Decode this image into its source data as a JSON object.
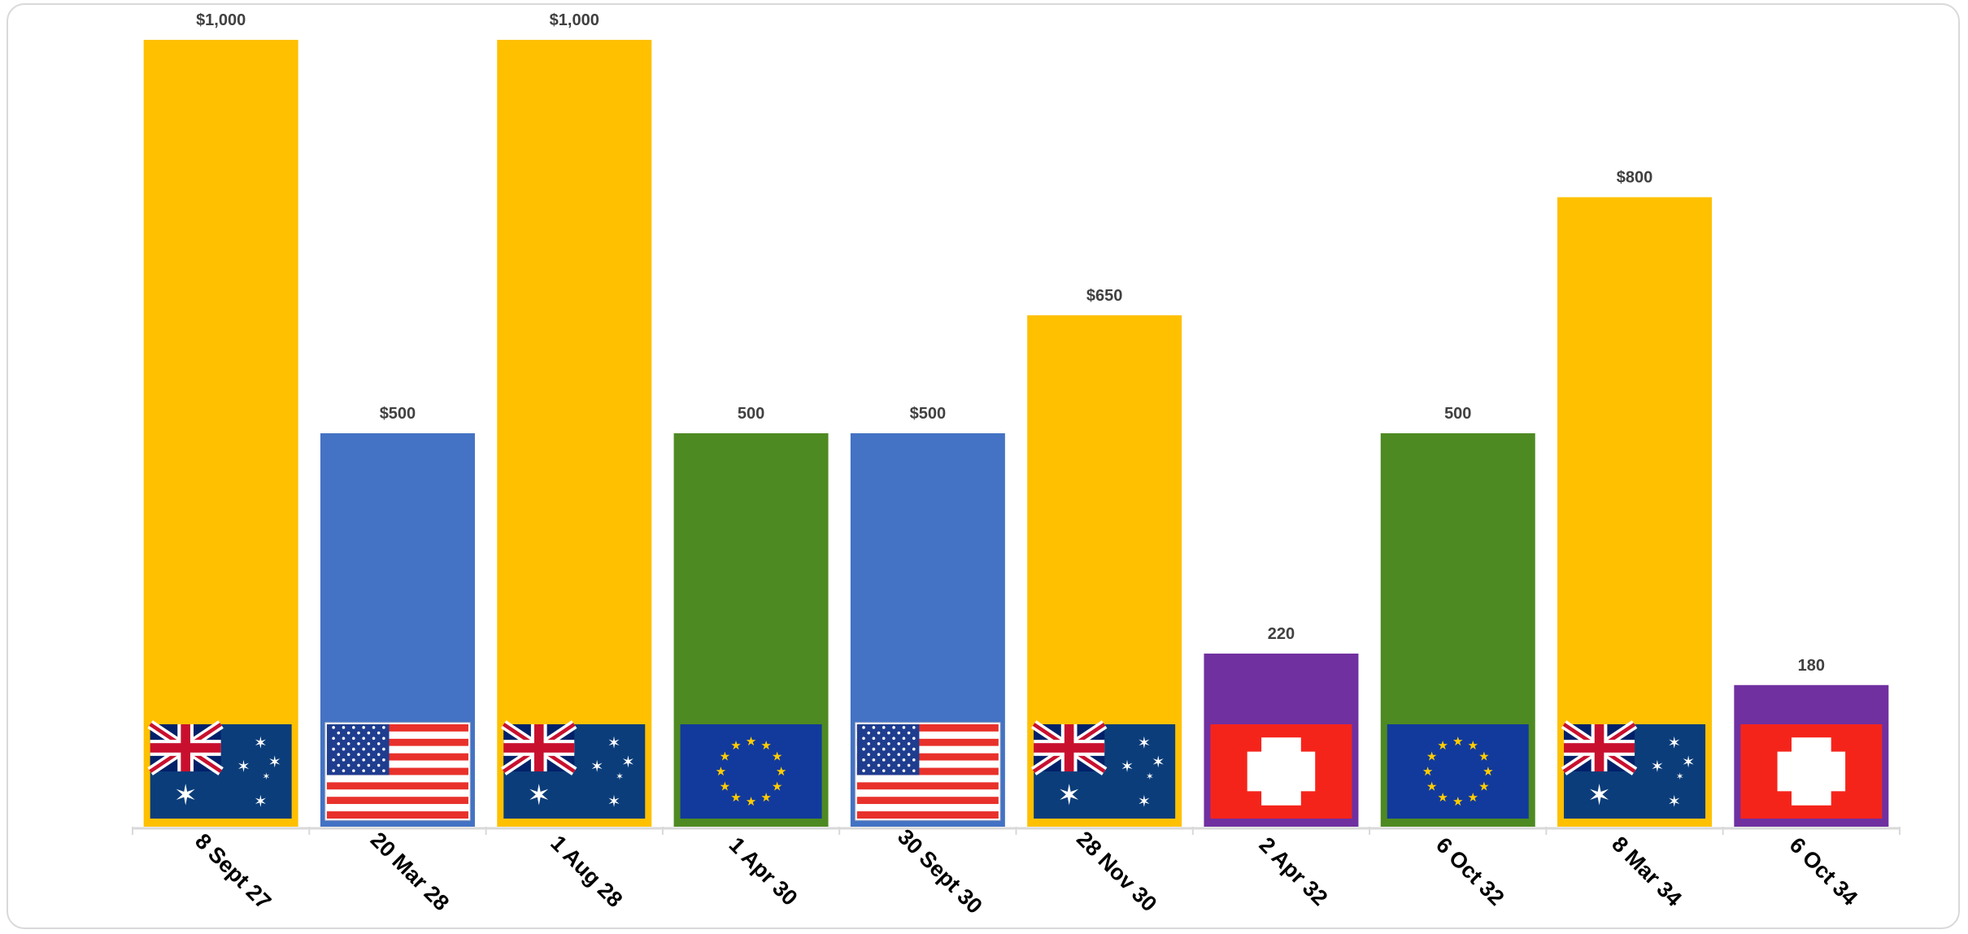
{
  "chart_data": {
    "type": "bar",
    "categories": [
      "8 Sept 27",
      "20 Mar 28",
      "1 Aug 28",
      "1 Apr 30",
      "30 Sept 30",
      "28 Nov 30",
      "2 Apr 32",
      "6 Oct 32",
      "8 Mar 34",
      "6 Oct 34"
    ],
    "values": [
      1000,
      500,
      1000,
      500,
      500,
      650,
      220,
      500,
      800,
      180
    ],
    "data_labels": [
      "$1,000",
      "$500",
      "$1,000",
      "500",
      "$500",
      "$650",
      "220",
      "500",
      "$800",
      "180"
    ],
    "currencies": [
      "AUD",
      "USD",
      "AUD",
      "EUR",
      "USD",
      "AUD",
      "CHF",
      "EUR",
      "AUD",
      "CHF"
    ],
    "flag_icons": [
      "australia-flag-icon",
      "usa-flag-icon",
      "australia-flag-icon",
      "eu-flag-icon",
      "usa-flag-icon",
      "australia-flag-icon",
      "swiss-flag-icon",
      "eu-flag-icon",
      "australia-flag-icon",
      "swiss-flag-icon"
    ],
    "colors": {
      "AUD": "#ffc000",
      "USD": "#4472c4",
      "EUR": "#4e8a22",
      "CHF": "#7030a0"
    },
    "ylim": [
      0,
      1000
    ],
    "grid": false,
    "legend": "none",
    "title": "",
    "xlabel": "",
    "ylabel": ""
  }
}
